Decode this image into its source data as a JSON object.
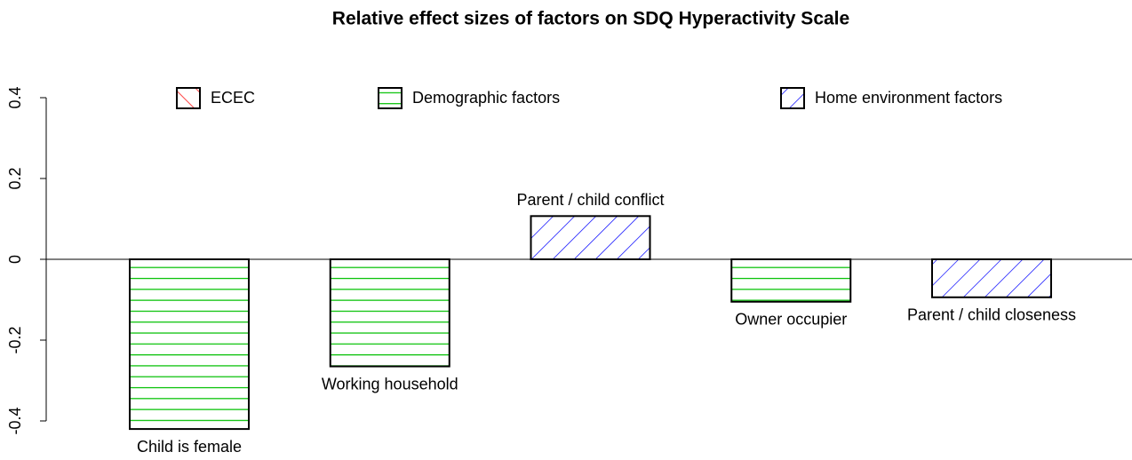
{
  "chart_data": {
    "type": "bar",
    "title": "Relative effect sizes of factors on  SDQ Hyperactivity Scale",
    "categories": [
      "Child is female",
      "Working household",
      "Parent / child conflict",
      "Owner occupier",
      "Parent / child closeness"
    ],
    "series": [
      {
        "name": "ECEC",
        "color": "#ff0000",
        "pattern": "diagonal-up",
        "values": [
          null,
          null,
          null,
          null,
          null
        ]
      },
      {
        "name": "Demographic factors",
        "color": "#00c000",
        "pattern": "horizontal",
        "values": [
          -0.42,
          -0.265,
          null,
          -0.105,
          null
        ]
      },
      {
        "name": "Home environment factors",
        "color": "#0000ff",
        "pattern": "diagonal-down",
        "values": [
          null,
          null,
          0.107,
          null,
          -0.094
        ]
      }
    ],
    "ylim": [
      -0.44,
      0.42
    ],
    "yticks": [
      -0.4,
      -0.2,
      0.0,
      0.2,
      0.4
    ],
    "legend": "top"
  }
}
